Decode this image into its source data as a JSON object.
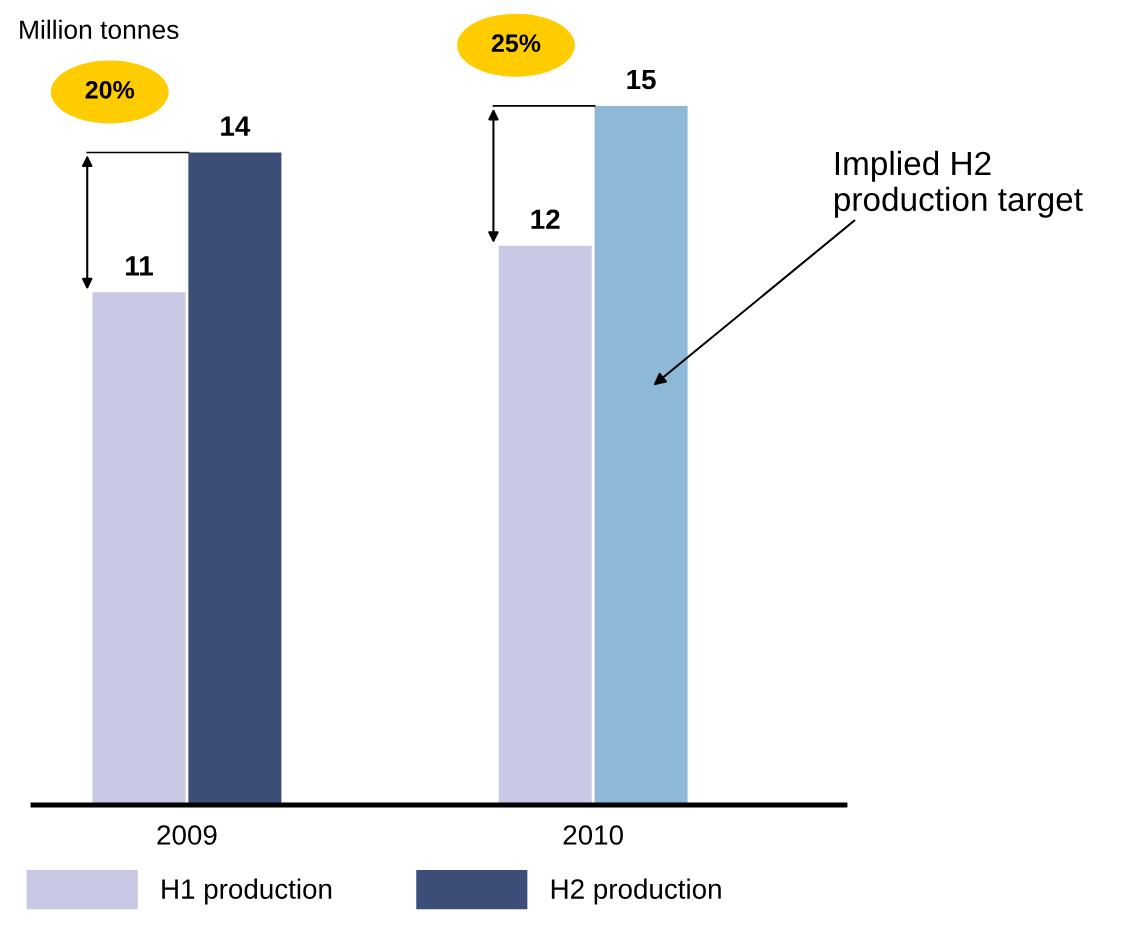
{
  "chart_data": {
    "type": "bar",
    "categories": [
      "2009",
      "2010"
    ],
    "series": [
      {
        "name": "H1 production",
        "color": "#c8c8e4",
        "values": [
          11,
          12
        ]
      },
      {
        "name": "H2 production",
        "color": "#3c4e78",
        "colors": [
          "#3c4e78",
          "#8db8d8"
        ],
        "values": [
          14,
          15
        ]
      }
    ],
    "data_labels": true,
    "legend": "bottom",
    "tick_labels": "x",
    "grid": false,
    "annotations": [
      "Million tonnes",
      "20%",
      "25%",
      "Implied H2\nproduction target"
    ]
  }
}
